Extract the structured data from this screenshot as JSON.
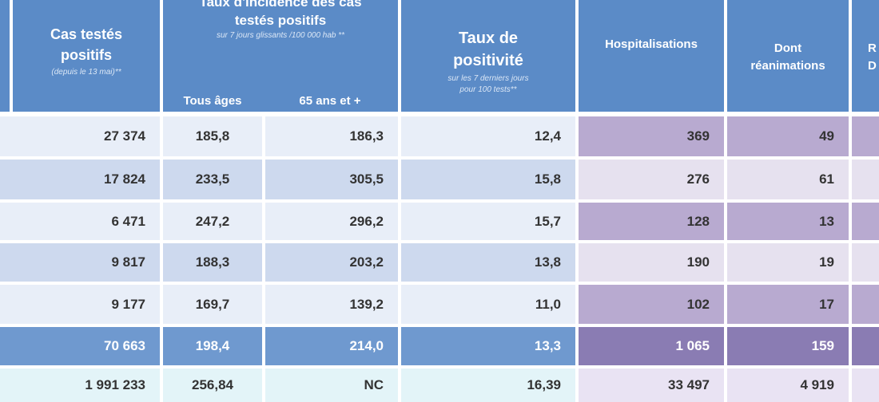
{
  "header": {
    "cas_testes": {
      "line1": "Cas testés",
      "line2": "positifs",
      "sub": "(depuis le 13 mai)**"
    },
    "taux_incidence": {
      "line1": "Taux d'incidence des cas",
      "line2": "testés positifs",
      "sub": "sur 7 jours glissants /100 000 hab **",
      "col_tous": "Tous âges",
      "col_65": "65 ans et +"
    },
    "taux_positivite": {
      "line1": "Taux de",
      "line2": "positivité",
      "sub1": "sur les 7 derniers jours",
      "sub2": "pour 100 tests**"
    },
    "hospitalisations": "Hospitalisations",
    "reanimations": {
      "line1": "Dont",
      "line2": "réanimations"
    },
    "cut_col": {
      "line1": "R",
      "line2": "D"
    }
  },
  "rows": [
    {
      "cas": "27 374",
      "tous": "185,8",
      "age65": "186,3",
      "pos": "12,4",
      "hosp": "369",
      "rea": "49"
    },
    {
      "cas": "17 824",
      "tous": "233,5",
      "age65": "305,5",
      "pos": "15,8",
      "hosp": "276",
      "rea": "61"
    },
    {
      "cas": "6 471",
      "tous": "247,2",
      "age65": "296,2",
      "pos": "15,7",
      "hosp": "128",
      "rea": "13"
    },
    {
      "cas": "9 817",
      "tous": "188,3",
      "age65": "203,2",
      "pos": "13,8",
      "hosp": "190",
      "rea": "19"
    },
    {
      "cas": "9 177",
      "tous": "169,7",
      "age65": "139,2",
      "pos": "11,0",
      "hosp": "102",
      "rea": "17"
    },
    {
      "cas": "70 663",
      "tous": "198,4",
      "age65": "214,0",
      "pos": "13,3",
      "hosp": "1 065",
      "rea": "159"
    },
    {
      "cas": "1 991 233",
      "tous": "256,84",
      "age65": "NC",
      "pos": "16,39",
      "hosp": "33 497",
      "rea": "4 919"
    }
  ],
  "colors": {
    "header_blue": "#5b8bc7",
    "row_light_blue": "#e8eef8",
    "row_mid_blue": "#cdd9ee",
    "row_light_purple": "#e6e1ef",
    "row_mid_purple": "#b8aad0",
    "total_blue": "#6f99cf",
    "total_purple": "#8a7cb3",
    "bottom_cyan": "#e3f4f8",
    "bottom_purple": "#e9e3f3"
  }
}
